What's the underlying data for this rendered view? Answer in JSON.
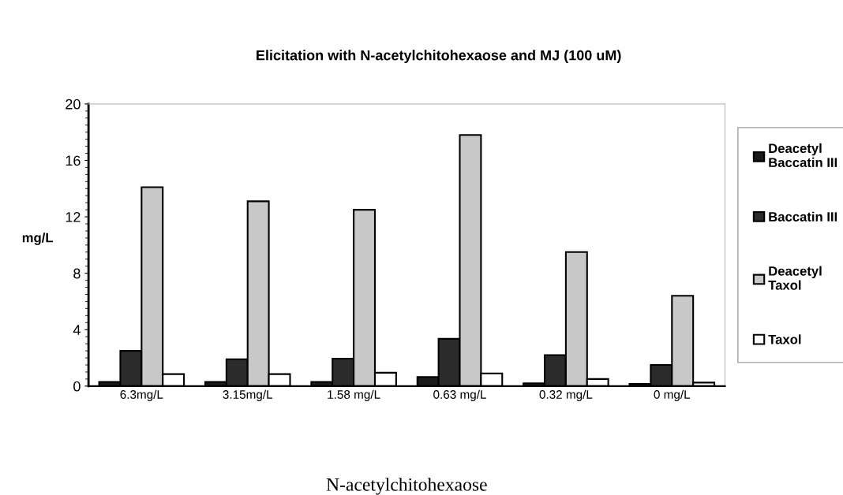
{
  "chart_data": {
    "type": "bar",
    "title": "Elicitation with N-acetylchitohexaose and MJ (100 uM)",
    "xlabel": "N-acetylchitohexaose",
    "ylabel": "mg/L",
    "categories": [
      "6.3mg/L",
      "3.15mg/L",
      "1.58 mg/L",
      "0.63 mg/L",
      "0.32 mg/L",
      "0 mg/L"
    ],
    "series": [
      {
        "name": "Deacetyl\nBaccatin III",
        "color": "#1a1a1a",
        "values": [
          0.3,
          0.3,
          0.3,
          0.65,
          0.2,
          0.15
        ]
      },
      {
        "name": "Baccatin III",
        "color": "#2b2b2b",
        "values": [
          2.5,
          1.9,
          1.95,
          3.35,
          2.2,
          1.5
        ]
      },
      {
        "name": "Deacetyl\nTaxol",
        "color": "#c8c8c8",
        "values": [
          14.1,
          13.1,
          12.5,
          17.8,
          9.5,
          6.4
        ]
      },
      {
        "name": "Taxol",
        "color": "#ffffff",
        "values": [
          0.85,
          0.85,
          0.95,
          0.9,
          0.5,
          0.25
        ]
      }
    ],
    "ylim": [
      0,
      20
    ],
    "yticks": [
      0,
      4,
      8,
      12,
      16,
      20
    ],
    "grid": false,
    "legend": "right"
  }
}
